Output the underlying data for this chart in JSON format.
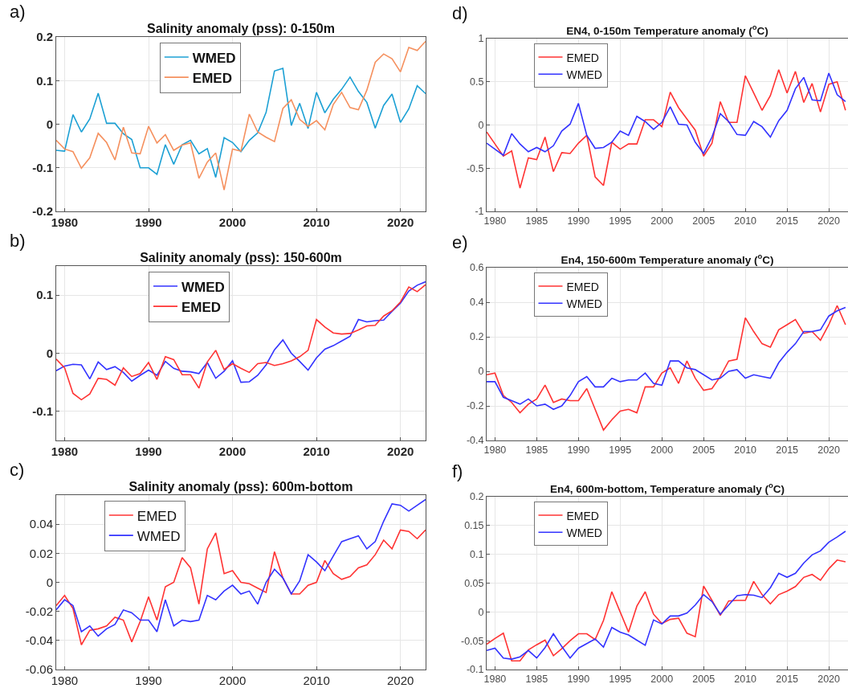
{
  "chart_data": [
    {
      "type": "line",
      "title": "Salinity anomaly (pss): 0-150m",
      "annotations": [
        "a)"
      ],
      "x": [
        1979,
        1980,
        1981,
        1982,
        1983,
        1984,
        1985,
        1986,
        1987,
        1988,
        1989,
        1990,
        1991,
        1992,
        1993,
        1994,
        1995,
        1996,
        1997,
        1998,
        1999,
        2000,
        2001,
        2002,
        2003,
        2004,
        2005,
        2006,
        2007,
        2008,
        2009,
        2010,
        2011,
        2012,
        2013,
        2014,
        2015,
        2016,
        2017,
        2018,
        2019,
        2020,
        2021,
        2022,
        2023
      ],
      "xlim": [
        1979,
        2023
      ],
      "xticks": [
        1980,
        1990,
        2000,
        2010,
        2020
      ],
      "ylim": [
        -0.2,
        0.2
      ],
      "yticks": [
        -0.2,
        -0.1,
        0,
        0.1,
        0.2
      ],
      "grid": true,
      "legend": "top left",
      "line_style": "solid",
      "series": [
        {
          "name": "WMED",
          "color": "#1ca0d4",
          "values": [
            -0.06,
            -0.062,
            0.022,
            -0.018,
            0.012,
            0.071,
            0.002,
            0.002,
            -0.022,
            -0.035,
            -0.1,
            -0.1,
            -0.115,
            -0.047,
            -0.092,
            -0.047,
            -0.037,
            -0.068,
            -0.056,
            -0.122,
            -0.031,
            -0.042,
            -0.063,
            -0.037,
            -0.02,
            0.027,
            0.122,
            0.128,
            -0.003,
            0.048,
            -0.01,
            0.073,
            0.026,
            0.057,
            0.08,
            0.108,
            0.075,
            0.05,
            -0.009,
            0.043,
            0.069,
            0.004,
            0.035,
            0.088,
            0.07
          ]
        },
        {
          "name": "EMED",
          "color": "#f5905e",
          "values": [
            -0.037,
            -0.057,
            -0.063,
            -0.101,
            -0.077,
            -0.021,
            -0.042,
            -0.082,
            -0.007,
            -0.066,
            -0.068,
            -0.005,
            -0.043,
            -0.024,
            -0.06,
            -0.048,
            -0.043,
            -0.124,
            -0.087,
            -0.066,
            -0.151,
            -0.057,
            -0.062,
            0.023,
            -0.018,
            -0.03,
            -0.04,
            0.036,
            0.056,
            0.011,
            -0.005,
            0.008,
            -0.013,
            0.045,
            0.073,
            0.038,
            0.033,
            0.078,
            0.142,
            0.161,
            0.15,
            0.12,
            0.176,
            0.169,
            0.19
          ]
        }
      ]
    },
    {
      "type": "line",
      "title": "EN4, 0-150m Temperature anomaly ($^{o}$C)",
      "annotations": [
        "d)"
      ],
      "x": [
        1979,
        1980,
        1981,
        1982,
        1983,
        1984,
        1985,
        1986,
        1987,
        1988,
        1989,
        1990,
        1991,
        1992,
        1993,
        1994,
        1995,
        1996,
        1997,
        1998,
        1999,
        2000,
        2001,
        2002,
        2003,
        2004,
        2005,
        2006,
        2007,
        2008,
        2009,
        2010,
        2011,
        2012,
        2013,
        2014,
        2015,
        2016,
        2017,
        2018,
        2019,
        2020,
        2021,
        2022
      ],
      "xlim": [
        1979,
        2022.3
      ],
      "xticks": [
        1980,
        1985,
        1990,
        1995,
        2000,
        2005,
        2010,
        2015,
        2020
      ],
      "ylim": [
        -1,
        1
      ],
      "yticks": [
        -1,
        -0.5,
        0,
        0.5,
        1
      ],
      "grid": true,
      "legend": "top left",
      "line_style": "solid",
      "series": [
        {
          "name": "EMED",
          "color": "#ff3333",
          "values": [
            -0.08,
            -0.22,
            -0.36,
            -0.3,
            -0.73,
            -0.38,
            -0.4,
            -0.14,
            -0.54,
            -0.32,
            -0.33,
            -0.21,
            -0.12,
            -0.6,
            -0.7,
            -0.2,
            -0.28,
            -0.22,
            -0.22,
            0.06,
            0.06,
            -0.02,
            0.38,
            0.2,
            0.07,
            -0.06,
            -0.36,
            -0.21,
            0.27,
            0.03,
            0.03,
            0.57,
            0.37,
            0.17,
            0.34,
            0.64,
            0.37,
            0.62,
            0.26,
            0.48,
            0.15,
            0.47,
            0.5,
            0.17
          ]
        },
        {
          "name": "WMED",
          "color": "#3333ff",
          "values": [
            -0.21,
            -0.28,
            -0.35,
            -0.1,
            -0.22,
            -0.31,
            -0.26,
            -0.31,
            -0.24,
            -0.07,
            0.01,
            0.25,
            -0.12,
            -0.27,
            -0.26,
            -0.2,
            -0.07,
            -0.12,
            0.1,
            0.04,
            -0.05,
            0.03,
            0.21,
            0.01,
            0.0,
            -0.2,
            -0.33,
            -0.14,
            0.13,
            0.04,
            -0.11,
            -0.12,
            0.04,
            -0.02,
            -0.14,
            0.05,
            0.17,
            0.42,
            0.55,
            0.29,
            0.28,
            0.6,
            0.35,
            0.27
          ]
        }
      ]
    },
    {
      "type": "line",
      "title": "Salinity anomaly (pss): 150-600m",
      "annotations": [
        "b)"
      ],
      "x": [
        1979,
        1980,
        1981,
        1982,
        1983,
        1984,
        1985,
        1986,
        1987,
        1988,
        1989,
        1990,
        1991,
        1992,
        1993,
        1994,
        1995,
        1996,
        1997,
        1998,
        1999,
        2000,
        2001,
        2002,
        2003,
        2004,
        2005,
        2006,
        2007,
        2008,
        2009,
        2010,
        2011,
        2012,
        2013,
        2014,
        2015,
        2016,
        2017,
        2018,
        2019,
        2020,
        2021,
        2022,
        2023
      ],
      "xlim": [
        1979,
        2023
      ],
      "xticks": [
        1980,
        1990,
        2000,
        2010,
        2020
      ],
      "ylim": [
        -0.15,
        0.15
      ],
      "yticks": [
        -0.1,
        0,
        0.1
      ],
      "grid": true,
      "legend": "top left",
      "line_style": "solid",
      "series": [
        {
          "name": "WMED",
          "color": "#3333ff",
          "values": [
            -0.03,
            -0.022,
            -0.019,
            -0.02,
            -0.044,
            -0.015,
            -0.028,
            -0.023,
            -0.033,
            -0.048,
            -0.038,
            -0.029,
            -0.038,
            -0.014,
            -0.026,
            -0.031,
            -0.032,
            -0.035,
            -0.016,
            -0.043,
            -0.031,
            -0.013,
            -0.05,
            -0.049,
            -0.038,
            -0.02,
            0.006,
            0.023,
            0.0,
            -0.014,
            -0.029,
            -0.008,
            0.007,
            0.013,
            0.021,
            0.029,
            0.058,
            0.054,
            0.056,
            0.057,
            0.072,
            0.086,
            0.107,
            0.117,
            0.123
          ]
        },
        {
          "name": "EMED",
          "color": "#ff3333",
          "values": [
            -0.01,
            -0.025,
            -0.069,
            -0.08,
            -0.07,
            -0.043,
            -0.045,
            -0.055,
            -0.025,
            -0.04,
            -0.035,
            -0.016,
            -0.045,
            -0.006,
            -0.011,
            -0.037,
            -0.037,
            -0.06,
            -0.015,
            0.005,
            -0.028,
            -0.018,
            -0.026,
            -0.033,
            -0.018,
            -0.016,
            -0.021,
            -0.018,
            -0.013,
            -0.006,
            0.005,
            0.058,
            0.045,
            0.035,
            0.033,
            0.034,
            0.04,
            0.047,
            0.048,
            0.064,
            0.073,
            0.088,
            0.114,
            0.106,
            0.118
          ]
        }
      ]
    },
    {
      "type": "line",
      "title": "En4, 150-600m Temperature anomaly ($^{o}$C)",
      "annotations": [
        "e)"
      ],
      "x": [
        1979,
        1980,
        1981,
        1982,
        1983,
        1984,
        1985,
        1986,
        1987,
        1988,
        1989,
        1990,
        1991,
        1992,
        1993,
        1994,
        1995,
        1996,
        1997,
        1998,
        1999,
        2000,
        2001,
        2002,
        2003,
        2004,
        2005,
        2006,
        2007,
        2008,
        2009,
        2010,
        2011,
        2012,
        2013,
        2014,
        2015,
        2016,
        2017,
        2018,
        2019,
        2020,
        2021,
        2022
      ],
      "xlim": [
        1979,
        2022.3
      ],
      "xticks": [
        1980,
        1985,
        1990,
        1995,
        2000,
        2005,
        2010,
        2015,
        2020
      ],
      "ylim": [
        -0.4,
        0.6
      ],
      "yticks": [
        -0.4,
        -0.2,
        0,
        0.2,
        0.4,
        0.6
      ],
      "grid": true,
      "legend": "top left",
      "line_style": "solid",
      "series": [
        {
          "name": "EMED",
          "color": "#ff3333",
          "values": [
            -0.02,
            -0.01,
            -0.14,
            -0.18,
            -0.24,
            -0.19,
            -0.16,
            -0.08,
            -0.18,
            -0.16,
            -0.17,
            -0.17,
            -0.1,
            -0.22,
            -0.34,
            -0.28,
            -0.23,
            -0.22,
            -0.24,
            -0.09,
            -0.09,
            -0.01,
            0.02,
            -0.07,
            0.06,
            -0.04,
            -0.11,
            -0.1,
            -0.03,
            0.06,
            0.07,
            0.31,
            0.23,
            0.16,
            0.14,
            0.24,
            0.27,
            0.3,
            0.22,
            0.23,
            0.18,
            0.27,
            0.38,
            0.27
          ]
        },
        {
          "name": "WMED",
          "color": "#3333ff",
          "values": [
            -0.06,
            -0.06,
            -0.15,
            -0.17,
            -0.19,
            -0.16,
            -0.2,
            -0.19,
            -0.22,
            -0.2,
            -0.14,
            -0.06,
            -0.03,
            -0.09,
            -0.09,
            -0.04,
            -0.06,
            -0.05,
            -0.05,
            -0.01,
            -0.07,
            -0.08,
            0.06,
            0.06,
            0.02,
            0.01,
            -0.02,
            -0.05,
            -0.04,
            0.0,
            0.01,
            -0.04,
            -0.02,
            -0.03,
            -0.04,
            0.05,
            0.11,
            0.16,
            0.23,
            0.23,
            0.24,
            0.32,
            0.35,
            0.37
          ]
        }
      ]
    },
    {
      "type": "line",
      "title": "Salinity anomaly (pss): 600m-bottom",
      "annotations": [
        "c)"
      ],
      "x": [
        1979,
        1980,
        1981,
        1982,
        1983,
        1984,
        1985,
        1986,
        1987,
        1988,
        1989,
        1990,
        1991,
        1992,
        1993,
        1994,
        1995,
        1996,
        1997,
        1998,
        1999,
        2000,
        2001,
        2002,
        2003,
        2004,
        2005,
        2006,
        2007,
        2008,
        2009,
        2010,
        2011,
        2012,
        2013,
        2014,
        2015,
        2016,
        2017,
        2018,
        2019,
        2020,
        2021,
        2022,
        2023
      ],
      "xlim": [
        1979,
        2023
      ],
      "xticks": [
        1980,
        1990,
        2000,
        2010,
        2020
      ],
      "ylim": [
        -0.06,
        0.06
      ],
      "yticks": [
        -0.06,
        -0.04,
        -0.02,
        0,
        0.02,
        0.04
      ],
      "grid": true,
      "legend": "top left",
      "line_style": "solid",
      "series": [
        {
          "name": "EMED",
          "color": "#ff3333",
          "values": [
            -0.016,
            -0.009,
            -0.018,
            -0.043,
            -0.033,
            -0.032,
            -0.03,
            -0.024,
            -0.026,
            -0.041,
            -0.027,
            -0.01,
            -0.026,
            -0.003,
            0.0,
            0.017,
            0.01,
            -0.015,
            0.023,
            0.034,
            0.006,
            0.008,
            0.0,
            -0.001,
            -0.004,
            -0.007,
            0.021,
            0.003,
            -0.008,
            -0.008,
            -0.002,
            0.0,
            0.015,
            0.006,
            0.002,
            0.004,
            0.01,
            0.012,
            0.019,
            0.029,
            0.023,
            0.036,
            0.035,
            0.03,
            0.036
          ]
        },
        {
          "name": "WMED",
          "color": "#3333ff",
          "values": [
            -0.019,
            -0.012,
            -0.016,
            -0.034,
            -0.03,
            -0.037,
            -0.032,
            -0.029,
            -0.019,
            -0.021,
            -0.026,
            -0.026,
            -0.034,
            -0.012,
            -0.03,
            -0.026,
            -0.027,
            -0.026,
            -0.009,
            -0.012,
            -0.006,
            -0.002,
            -0.008,
            -0.006,
            -0.015,
            0.0,
            0.009,
            0.003,
            -0.008,
            0.001,
            0.019,
            0.014,
            0.008,
            0.018,
            0.028,
            0.03,
            0.032,
            0.023,
            0.028,
            0.042,
            0.054,
            0.053,
            0.049,
            0.053,
            0.057
          ]
        }
      ]
    },
    {
      "type": "line",
      "title": "En4, 600m-bottom, Temperature anomaly ($^{o}$C)",
      "annotations": [
        "f)"
      ],
      "x": [
        1979,
        1980,
        1981,
        1982,
        1983,
        1984,
        1985,
        1986,
        1987,
        1988,
        1989,
        1990,
        1991,
        1992,
        1993,
        1994,
        1995,
        1996,
        1997,
        1998,
        1999,
        2000,
        2001,
        2002,
        2003,
        2004,
        2005,
        2006,
        2007,
        2008,
        2009,
        2010,
        2011,
        2012,
        2013,
        2014,
        2015,
        2016,
        2017,
        2018,
        2019,
        2020,
        2021,
        2022
      ],
      "xlim": [
        1979,
        2022.3
      ],
      "xticks": [
        1980,
        1985,
        1990,
        1995,
        2000,
        2005,
        2010,
        2015,
        2020
      ],
      "ylim": [
        -0.1,
        0.2
      ],
      "yticks": [
        -0.1,
        -0.05,
        0,
        0.05,
        0.1,
        0.15,
        0.2
      ],
      "grid": true,
      "legend": "top left",
      "line_style": "solid",
      "series": [
        {
          "name": "EMED",
          "color": "#ff3333",
          "values": [
            -0.056,
            -0.046,
            -0.037,
            -0.085,
            -0.085,
            -0.066,
            -0.057,
            -0.049,
            -0.076,
            -0.064,
            -0.05,
            -0.038,
            -0.038,
            -0.048,
            -0.015,
            0.035,
            0.0,
            -0.035,
            0.01,
            0.035,
            -0.004,
            -0.02,
            -0.013,
            -0.011,
            -0.037,
            -0.043,
            0.045,
            0.02,
            -0.006,
            0.019,
            0.02,
            0.02,
            0.053,
            0.03,
            0.014,
            0.03,
            0.036,
            0.044,
            0.06,
            0.065,
            0.055,
            0.075,
            0.09,
            0.087
          ]
        },
        {
          "name": "WMED",
          "color": "#3333ff",
          "values": [
            -0.067,
            -0.063,
            -0.08,
            -0.082,
            -0.078,
            -0.067,
            -0.08,
            -0.062,
            -0.038,
            -0.06,
            -0.08,
            -0.063,
            -0.055,
            -0.047,
            -0.061,
            -0.027,
            -0.035,
            -0.04,
            -0.049,
            -0.058,
            -0.014,
            -0.021,
            -0.007,
            -0.007,
            -0.002,
            0.012,
            0.03,
            0.018,
            -0.004,
            0.012,
            0.028,
            0.03,
            0.029,
            0.025,
            0.042,
            0.067,
            0.06,
            0.067,
            0.085,
            0.099,
            0.106,
            0.121,
            0.13,
            0.14
          ]
        }
      ]
    }
  ]
}
